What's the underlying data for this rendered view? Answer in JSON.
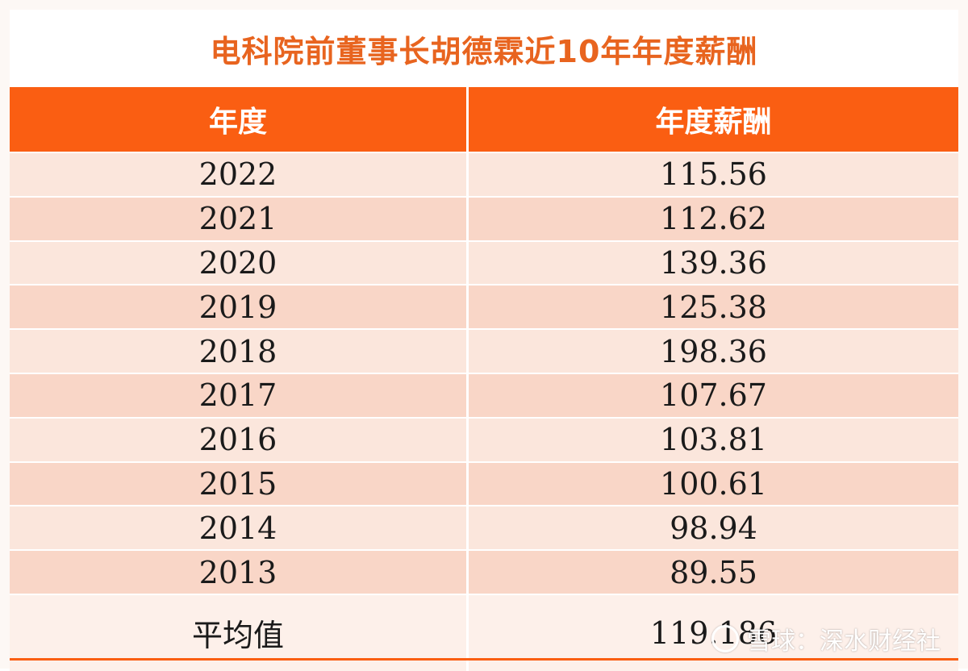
{
  "title": "电科院前董事长胡德霖近10年年度薪酬",
  "headers": {
    "col1": "年度",
    "col2": "年度薪酬"
  },
  "rows": [
    {
      "year": "2022",
      "salary": "115.56"
    },
    {
      "year": "2021",
      "salary": "112.62"
    },
    {
      "year": "2020",
      "salary": "139.36"
    },
    {
      "year": "2019",
      "salary": "125.38"
    },
    {
      "year": "2018",
      "salary": "198.36"
    },
    {
      "year": "2017",
      "salary": "107.67"
    },
    {
      "year": "2016",
      "salary": "103.81"
    },
    {
      "year": "2015",
      "salary": "100.61"
    },
    {
      "year": "2014",
      "salary": "98.94"
    },
    {
      "year": "2013",
      "salary": "89.55"
    }
  ],
  "average": {
    "label": "平均值",
    "value": "119.186"
  },
  "watermark": {
    "text": "雪球：深水财经社",
    "icon": "snowball-logo-icon"
  },
  "colors": {
    "header": "#fa5e12",
    "title": "#e8641f",
    "row_light": "#fbe6dc",
    "row_dark": "#f9d6c7"
  }
}
